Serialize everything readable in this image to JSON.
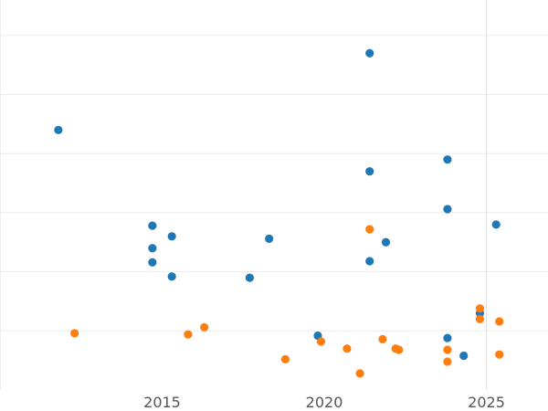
{
  "chart_data": {
    "type": "scatter",
    "title": "",
    "xlabel": "",
    "ylabel": "",
    "xlim": [
      2010,
      2026.9
    ],
    "ylim": [
      -1,
      32
    ],
    "grid": true,
    "x_ticks": [
      2015,
      2020,
      2025
    ],
    "x_tick_labels": [
      "2015",
      "2020",
      "2025"
    ],
    "y_gridlines": [
      4,
      9,
      14,
      19,
      24,
      29
    ],
    "x_minor_gridlines": [
      2010.0,
      2025.0
    ],
    "series": [
      {
        "color": "#1f77b4",
        "points": [
          [
            2011.8,
            21.0
          ],
          [
            2014.7,
            12.9
          ],
          [
            2015.3,
            12.0
          ],
          [
            2014.7,
            11.0
          ],
          [
            2014.7,
            9.8
          ],
          [
            2015.3,
            8.6
          ],
          [
            2017.7,
            8.5
          ],
          [
            2018.3,
            11.8
          ],
          [
            2019.8,
            3.6
          ],
          [
            2021.4,
            27.5
          ],
          [
            2021.4,
            17.5
          ],
          [
            2021.4,
            9.9
          ],
          [
            2021.9,
            11.5
          ],
          [
            2023.8,
            18.5
          ],
          [
            2023.8,
            14.3
          ],
          [
            2023.8,
            3.4
          ],
          [
            2024.3,
            1.9
          ],
          [
            2024.8,
            5.5
          ],
          [
            2025.3,
            13.0
          ]
        ]
      },
      {
        "color": "#ff7f0e",
        "points": [
          [
            2012.3,
            3.8
          ],
          [
            2015.8,
            3.7
          ],
          [
            2016.3,
            4.3
          ],
          [
            2018.8,
            1.6
          ],
          [
            2019.9,
            3.1
          ],
          [
            2020.7,
            2.5
          ],
          [
            2021.1,
            0.4
          ],
          [
            2021.4,
            12.6
          ],
          [
            2021.8,
            3.3
          ],
          [
            2022.2,
            2.5
          ],
          [
            2022.3,
            2.4
          ],
          [
            2023.8,
            2.4
          ],
          [
            2023.8,
            1.4
          ],
          [
            2024.8,
            5.9
          ],
          [
            2024.8,
            5.0
          ],
          [
            2025.4,
            4.8
          ],
          [
            2025.4,
            2.0
          ]
        ]
      }
    ]
  }
}
